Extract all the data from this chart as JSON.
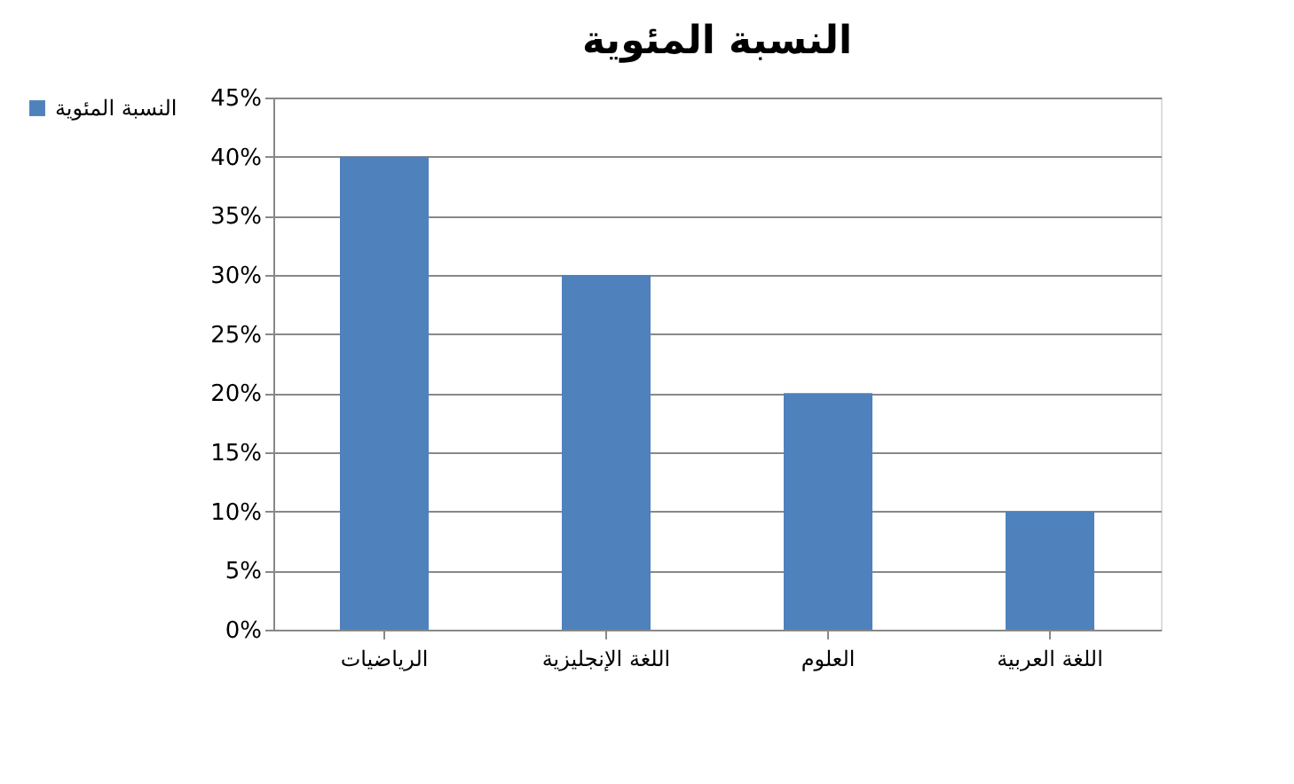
{
  "chart_data": {
    "type": "bar",
    "title": "النسبة المئوية",
    "categories": [
      "الرياضيات",
      "اللغة الإنجليزية",
      "العلوم",
      "اللغة العربية"
    ],
    "series": [
      {
        "name": "النسبة المئوية",
        "color": "#4f81bd",
        "values": [
          40,
          30,
          20,
          10
        ]
      }
    ],
    "ylim": [
      0,
      45
    ],
    "yticks": [
      {
        "value": 0,
        "label": "0%"
      },
      {
        "value": 5,
        "label": "5%"
      },
      {
        "value": 10,
        "label": "10%"
      },
      {
        "value": 15,
        "label": "15%"
      },
      {
        "value": 20,
        "label": "20%"
      },
      {
        "value": 25,
        "label": "25%"
      },
      {
        "value": 30,
        "label": "30%"
      },
      {
        "value": 35,
        "label": "35%"
      },
      {
        "value": 40,
        "label": "40%"
      },
      {
        "value": 45,
        "label": "45%"
      }
    ],
    "grid": "y",
    "legend": "left"
  }
}
